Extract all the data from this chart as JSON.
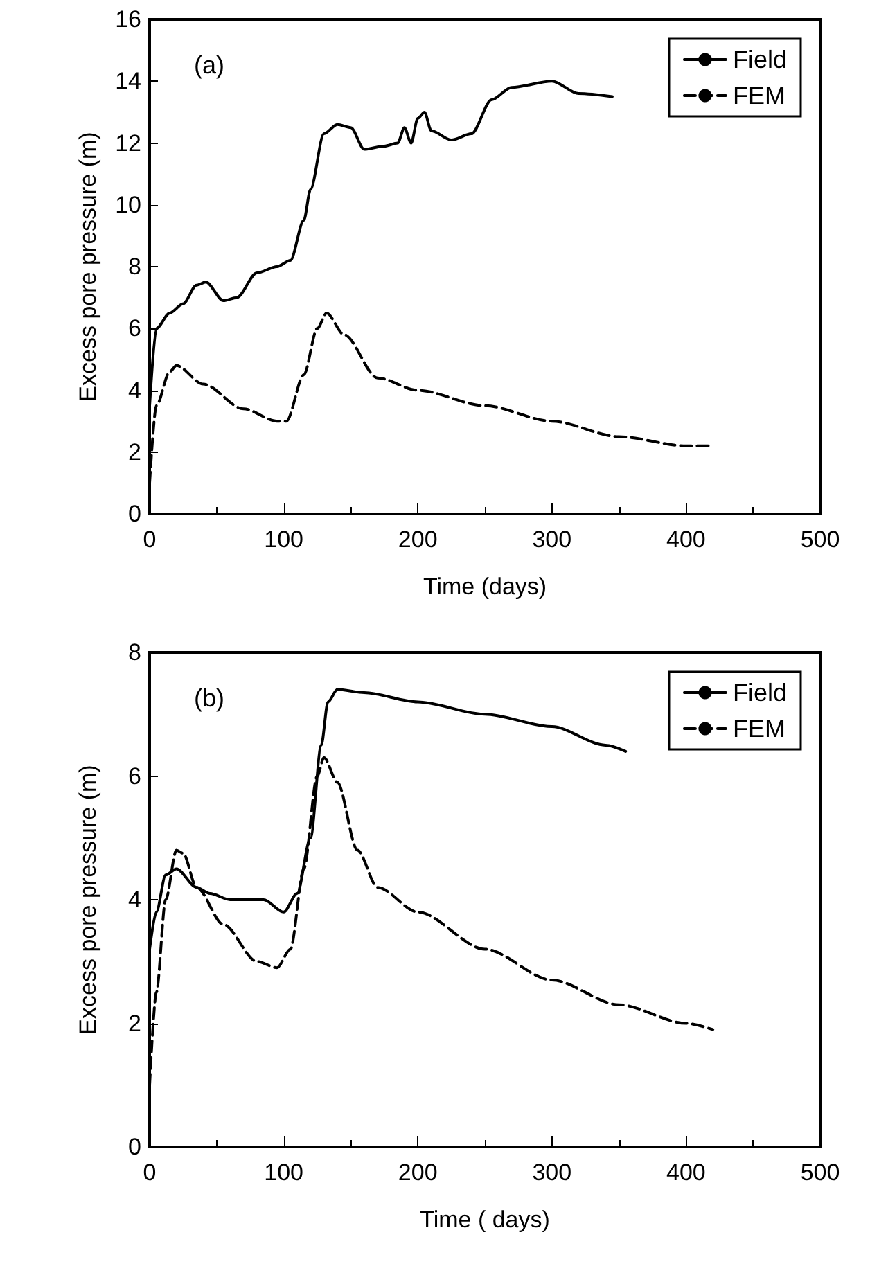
{
  "chart_data": [
    {
      "type": "line",
      "xlabel": "Time (days)",
      "ylabel": "Excess pore pressure (m)",
      "annotations": [
        "(a)"
      ],
      "xlim": [
        0,
        500
      ],
      "xticks": [
        0,
        100,
        200,
        300,
        400,
        500
      ],
      "ylim": [
        0,
        16
      ],
      "yticks": [
        0,
        2,
        4,
        6,
        8,
        10,
        12,
        14,
        16
      ],
      "legend": "top right",
      "grid": false,
      "marker": "none",
      "series": [
        {
          "name": "Field",
          "color": "#000000",
          "line_style": "solid",
          "x": [
            0,
            5,
            15,
            25,
            35,
            42,
            55,
            65,
            80,
            95,
            105,
            115,
            120,
            130,
            140,
            150,
            160,
            175,
            185,
            190,
            195,
            200,
            205,
            210,
            225,
            240,
            255,
            270,
            300,
            320,
            345
          ],
          "values": [
            3.5,
            6,
            6.5,
            6.8,
            7.4,
            7.5,
            6.9,
            7.0,
            7.8,
            8.0,
            8.2,
            9.5,
            10.5,
            12.3,
            12.6,
            12.5,
            11.8,
            11.9,
            12.0,
            12.5,
            12.0,
            12.8,
            13.0,
            12.4,
            12.1,
            12.3,
            13.4,
            13.8,
            14.0,
            13.6,
            13.5
          ]
        },
        {
          "name": "FEM",
          "color": "#000000",
          "line_style": "dashed",
          "x": [
            0,
            5,
            15,
            20,
            40,
            70,
            95,
            102,
            115,
            125,
            132,
            145,
            170,
            200,
            250,
            300,
            350,
            400,
            420
          ],
          "values": [
            1,
            3.5,
            4.6,
            4.8,
            4.2,
            3.4,
            3.0,
            3.0,
            4.5,
            6.0,
            6.5,
            5.8,
            4.4,
            4.0,
            3.5,
            3.0,
            2.5,
            2.2,
            2.2
          ]
        }
      ]
    },
    {
      "type": "line",
      "xlabel": "Time ( days)",
      "ylabel": "Excess pore pressure (m)",
      "annotations": [
        "(b)"
      ],
      "xlim": [
        0,
        500
      ],
      "xticks": [
        0,
        100,
        200,
        300,
        400,
        500
      ],
      "ylim": [
        0,
        8
      ],
      "yticks": [
        0,
        2,
        4,
        6,
        8
      ],
      "legend": "top right",
      "grid": false,
      "marker": "none",
      "series": [
        {
          "name": "Field",
          "color": "#000000",
          "line_style": "solid",
          "x": [
            0,
            5,
            12,
            20,
            35,
            45,
            60,
            85,
            100,
            110,
            120,
            128,
            133,
            140,
            160,
            200,
            250,
            300,
            340,
            355
          ],
          "values": [
            3.2,
            3.8,
            4.4,
            4.5,
            4.2,
            4.1,
            4.0,
            4.0,
            3.8,
            4.1,
            5.0,
            6.5,
            7.2,
            7.4,
            7.35,
            7.2,
            7.0,
            6.8,
            6.5,
            6.4
          ]
        },
        {
          "name": "FEM",
          "color": "#000000",
          "line_style": "dashed",
          "x": [
            0,
            5,
            12,
            20,
            25,
            35,
            55,
            80,
            95,
            105,
            115,
            125,
            130,
            140,
            155,
            170,
            200,
            250,
            300,
            350,
            400,
            420
          ],
          "values": [
            1,
            2.5,
            4.0,
            4.8,
            4.75,
            4.2,
            3.6,
            3.0,
            2.9,
            3.2,
            4.5,
            6.0,
            6.3,
            5.9,
            4.8,
            4.2,
            3.8,
            3.2,
            2.7,
            2.3,
            2.0,
            1.9
          ]
        }
      ]
    }
  ]
}
